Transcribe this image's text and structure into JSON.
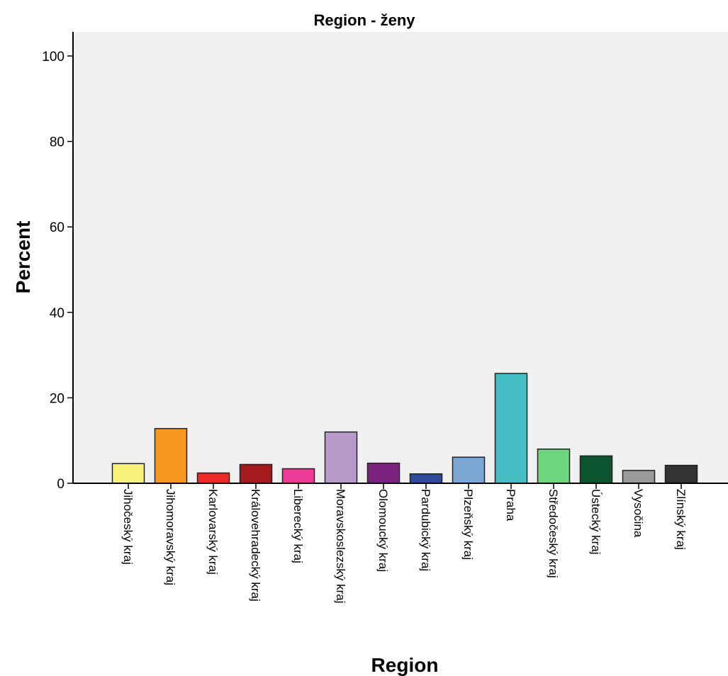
{
  "chart_data": {
    "type": "bar",
    "title": "Region - ženy",
    "xlabel": "Region",
    "ylabel": "Percent",
    "ylim": [
      0,
      100
    ],
    "yticks": [
      0,
      20,
      40,
      60,
      80,
      100
    ],
    "grid": false,
    "background_color": "#f0f0f0",
    "categories": [
      "Jihočeský kraj",
      "Jihomoravský kraj",
      "Karlovarský kraj",
      "Královehradecký kraj",
      "Liberecký kraj",
      "Moravskoslezský kraj",
      "Olomoucký kraj",
      "Pardubický kraj",
      "Plzeňský kraj",
      "Praha",
      "Středočeský kraj",
      "Ústecký kraj",
      "Vysočina",
      "Zlínský kraj"
    ],
    "values": [
      4.6,
      12.8,
      2.4,
      4.4,
      3.4,
      12.0,
      4.7,
      2.2,
      6.1,
      25.7,
      8.0,
      6.4,
      3.0,
      4.2
    ],
    "colors": [
      "#f8f27a",
      "#f7991f",
      "#ee2a28",
      "#a41a1d",
      "#ee3b97",
      "#b99bc9",
      "#7b237f",
      "#2f4c9b",
      "#7ba6d4",
      "#45bfc4",
      "#6fd67f",
      "#0d5431",
      "#9a9a9a",
      "#333333"
    ]
  }
}
